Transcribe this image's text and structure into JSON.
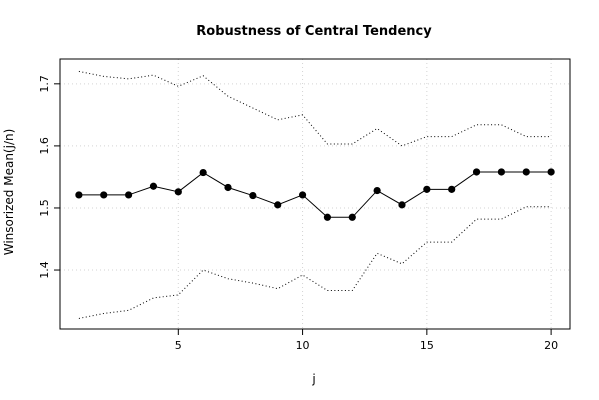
{
  "chart_data": {
    "type": "line",
    "title": "Robustness of Central Tendency",
    "xlabel": "j",
    "ylabel": "Winsorized Mean(j/n)",
    "xlim": [
      0.24,
      20.76
    ],
    "ylim": [
      1.305,
      1.74
    ],
    "xticks": [
      5,
      10,
      15,
      20
    ],
    "yticks": [
      1.4,
      1.5,
      1.6,
      1.7
    ],
    "grid": true,
    "x": [
      1,
      2,
      3,
      4,
      5,
      6,
      7,
      8,
      9,
      10,
      11,
      12,
      13,
      14,
      15,
      16,
      17,
      18,
      19,
      20
    ],
    "series": [
      {
        "role": "mean",
        "values": [
          1.521,
          1.521,
          1.521,
          1.535,
          1.526,
          1.557,
          1.533,
          1.52,
          1.505,
          1.521,
          1.485,
          1.485,
          1.528,
          1.505,
          1.53,
          1.53,
          1.558,
          1.558,
          1.558,
          1.558
        ]
      },
      {
        "role": "upper",
        "values": [
          1.72,
          1.712,
          1.708,
          1.714,
          1.696,
          1.713,
          1.68,
          1.661,
          1.642,
          1.65,
          1.603,
          1.603,
          1.628,
          1.6,
          1.615,
          1.615,
          1.634,
          1.634,
          1.615,
          1.615
        ]
      },
      {
        "role": "lower",
        "values": [
          1.322,
          1.33,
          1.335,
          1.355,
          1.36,
          1.4,
          1.386,
          1.379,
          1.37,
          1.392,
          1.367,
          1.367,
          1.427,
          1.41,
          1.445,
          1.445,
          1.482,
          1.482,
          1.502,
          1.502
        ]
      }
    ]
  }
}
